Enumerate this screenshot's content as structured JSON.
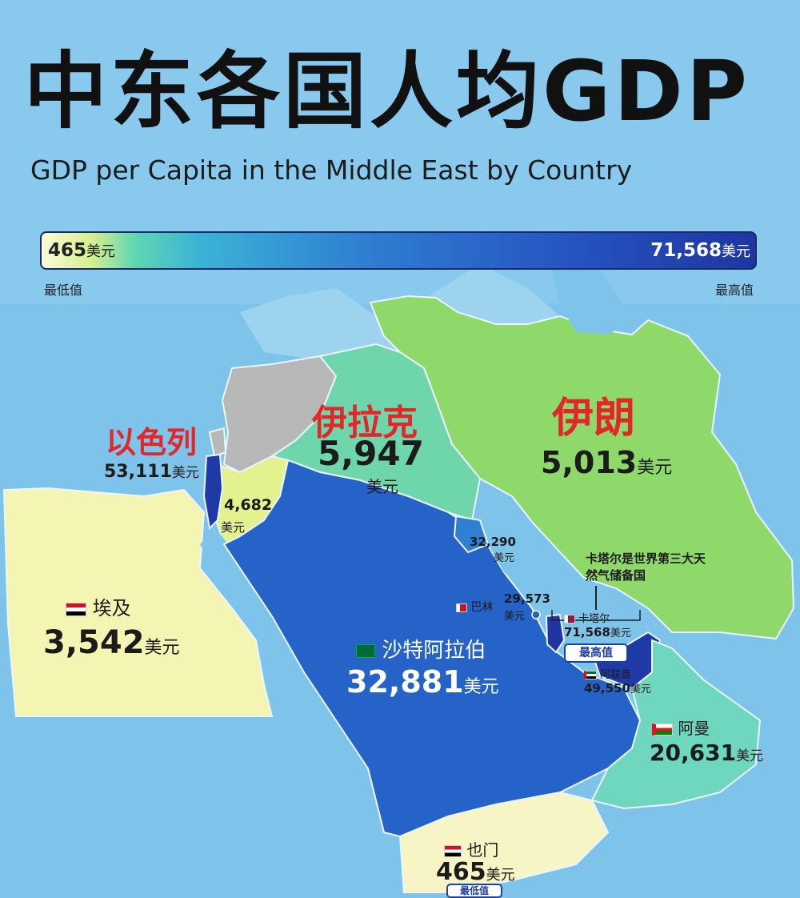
{
  "title": {
    "zh": "中东各国人均GDP",
    "en": "GDP per Capita in the Middle East by Country"
  },
  "scale": {
    "min_value": "465",
    "max_value": "71,568",
    "unit": "美元",
    "min_label": "最低值",
    "max_label": "最高值"
  },
  "countries": {
    "israel": {
      "name": "以色列",
      "value": "53,111",
      "unit": "美元"
    },
    "jordan": {
      "value": "4,682",
      "unit": "美元"
    },
    "iraq": {
      "name": "伊拉克",
      "value": "5,947",
      "unit": "美元"
    },
    "iran": {
      "name": "伊朗",
      "value": "5,013",
      "unit": "美元"
    },
    "kuwait": {
      "value": "32,290",
      "unit": "美元"
    },
    "bahrain": {
      "name": "巴林",
      "value": "29,573",
      "unit": "美元"
    },
    "qatar": {
      "name": "卡塔尔",
      "value": "71,568",
      "unit": "美元",
      "badge": "最高值",
      "note": "卡塔尔是世界第三大天然气储备国"
    },
    "uae": {
      "name": "阿联酋",
      "value": "49,550",
      "unit": "美元"
    },
    "oman": {
      "name": "阿曼",
      "value": "20,631",
      "unit": "美元"
    },
    "saudi": {
      "name": "沙特阿拉伯",
      "value": "32,881",
      "unit": "美元"
    },
    "egypt": {
      "name": "埃及",
      "value": "3,542",
      "unit": "美元"
    },
    "yemen": {
      "name": "也门",
      "value": "465",
      "unit": "美元",
      "badge": "最低值"
    }
  },
  "colors": {
    "sea": "#7ec3ea",
    "land_gray": "#b8b8b8",
    "egypt": "#f5f5b3",
    "iran": "#8fd96b",
    "iraq": "#6fd6ab",
    "saudi": "#2563c9",
    "israel": "#1f3aa6",
    "jordan": "#e4f18f",
    "oman": "#6fd6c0",
    "uae": "#1f3aa6",
    "yemen": "#f7f4c6",
    "accent_red": "#e2272b"
  }
}
